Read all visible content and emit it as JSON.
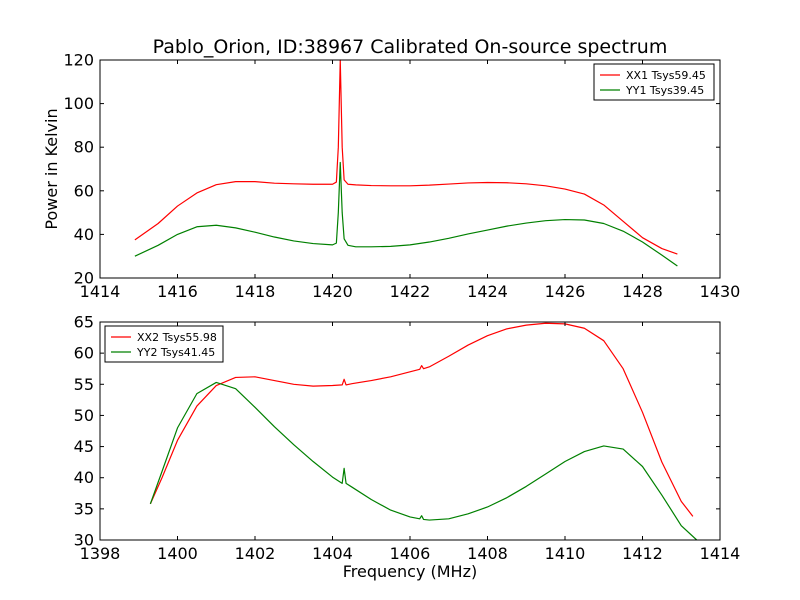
{
  "title": "Pablo_Orion, ID:38967 Calibrated On-source spectrum",
  "chart_data": [
    {
      "type": "line",
      "title": "Pablo_Orion, ID:38967 Calibrated On-source spectrum",
      "xlabel": "",
      "ylabel": "Power in Kelvin",
      "xlim": [
        1414,
        1430
      ],
      "ylim": [
        20,
        120
      ],
      "xticks": [
        "1414",
        "1416",
        "1418",
        "1420",
        "1422",
        "1424",
        "1426",
        "1428",
        "1430"
      ],
      "yticks": [
        "20",
        "40",
        "60",
        "80",
        "100",
        "120"
      ],
      "grid": false,
      "legend": "top-right",
      "series": [
        {
          "name": "XX1 Tsys59.45",
          "color": "#ff0000",
          "x": [
            1414.9,
            1415.5,
            1416.0,
            1416.5,
            1417.0,
            1417.5,
            1418.0,
            1418.5,
            1419.0,
            1419.5,
            1420.0,
            1420.1,
            1420.15,
            1420.2,
            1420.25,
            1420.3,
            1420.4,
            1420.6,
            1421.0,
            1421.5,
            1422.0,
            1422.5,
            1423.0,
            1423.5,
            1424.0,
            1424.5,
            1425.0,
            1425.5,
            1426.0,
            1426.5,
            1427.0,
            1427.5,
            1428.0,
            1428.5,
            1428.9
          ],
          "values": [
            37.5,
            45,
            53,
            59,
            62.8,
            64.2,
            64.2,
            63.5,
            63.2,
            63,
            63,
            64,
            80,
            120,
            80,
            65,
            63,
            62.7,
            62.4,
            62.3,
            62.3,
            62.6,
            63.1,
            63.6,
            63.8,
            63.7,
            63.2,
            62.3,
            60.8,
            58.5,
            53.5,
            46,
            38.5,
            33.5,
            31
          ]
        },
        {
          "name": "YY1 Tsys39.45",
          "color": "#008000",
          "x": [
            1414.9,
            1415.5,
            1416.0,
            1416.5,
            1417.0,
            1417.5,
            1418.0,
            1418.5,
            1419.0,
            1419.5,
            1420.0,
            1420.1,
            1420.15,
            1420.2,
            1420.25,
            1420.3,
            1420.4,
            1420.6,
            1421.0,
            1421.5,
            1422.0,
            1422.5,
            1423.0,
            1423.5,
            1424.0,
            1424.5,
            1425.0,
            1425.5,
            1426.0,
            1426.5,
            1427.0,
            1427.5,
            1428.0,
            1428.5,
            1428.9
          ],
          "values": [
            30,
            35,
            40,
            43.5,
            44.2,
            43,
            41,
            38.8,
            37,
            35.8,
            35.2,
            36,
            50,
            73,
            50,
            38,
            35,
            34.3,
            34.3,
            34.5,
            35.2,
            36.5,
            38.2,
            40.2,
            42,
            43.8,
            45.2,
            46.3,
            46.8,
            46.6,
            45,
            41.5,
            36.5,
            30.5,
            25.5
          ]
        }
      ]
    },
    {
      "type": "line",
      "title": "",
      "xlabel": "Frequency (MHz)",
      "ylabel": "",
      "xlim": [
        1398,
        1414
      ],
      "ylim": [
        30,
        65
      ],
      "xticks": [
        "1398",
        "1400",
        "1402",
        "1404",
        "1406",
        "1408",
        "1410",
        "1412",
        "1414"
      ],
      "yticks": [
        "30",
        "35",
        "40",
        "45",
        "50",
        "55",
        "60",
        "65"
      ],
      "grid": false,
      "legend": "top-left",
      "series": [
        {
          "name": "XX2 Tsys55.98",
          "color": "#ff0000",
          "x": [
            1399.3,
            1399.6,
            1400.0,
            1400.5,
            1401.0,
            1401.5,
            1402.0,
            1402.5,
            1403.0,
            1403.5,
            1404.0,
            1404.25,
            1404.3,
            1404.35,
            1404.5,
            1405.0,
            1405.5,
            1406.0,
            1406.25,
            1406.3,
            1406.35,
            1406.5,
            1407.0,
            1407.5,
            1408.0,
            1408.5,
            1409.0,
            1409.5,
            1410.0,
            1410.5,
            1411.0,
            1411.5,
            1412.0,
            1412.5,
            1413.0,
            1413.3
          ],
          "values": [
            35.8,
            40,
            46,
            51.5,
            54.8,
            56.1,
            56.2,
            55.6,
            55,
            54.7,
            54.8,
            54.9,
            55.8,
            54.9,
            55.1,
            55.6,
            56.2,
            57,
            57.4,
            58,
            57.5,
            57.8,
            59.5,
            61.3,
            62.8,
            63.9,
            64.5,
            64.8,
            64.7,
            64,
            62,
            57.5,
            50.5,
            42.5,
            36.2,
            33.8
          ]
        },
        {
          "name": "YY2 Tsys41.45",
          "color": "#008000",
          "x": [
            1399.3,
            1399.6,
            1400.0,
            1400.5,
            1401.0,
            1401.5,
            1402.0,
            1402.5,
            1403.0,
            1403.5,
            1404.0,
            1404.25,
            1404.3,
            1404.35,
            1404.5,
            1405.0,
            1405.5,
            1406.0,
            1406.25,
            1406.3,
            1406.35,
            1406.5,
            1407.0,
            1407.5,
            1408.0,
            1408.5,
            1409.0,
            1409.5,
            1410.0,
            1410.5,
            1411.0,
            1411.5,
            1412.0,
            1412.5,
            1413.0,
            1413.4
          ],
          "values": [
            35.8,
            41,
            48,
            53.5,
            55.3,
            54.3,
            51.3,
            48.2,
            45.3,
            42.6,
            40.1,
            39.1,
            41.5,
            39.1,
            38.5,
            36.5,
            34.8,
            33.7,
            33.4,
            33.9,
            33.3,
            33.2,
            33.4,
            34.2,
            35.3,
            36.8,
            38.6,
            40.6,
            42.6,
            44.2,
            45.1,
            44.6,
            41.8,
            37.2,
            32.3,
            30
          ]
        }
      ]
    }
  ]
}
